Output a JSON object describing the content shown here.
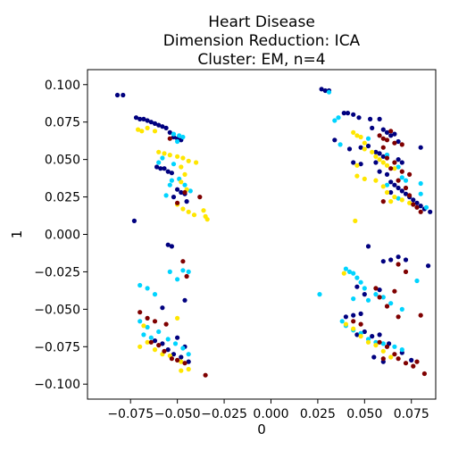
{
  "chart_data": {
    "type": "scatter",
    "title": [
      "Heart Disease",
      "Dimension Reduction: ICA",
      "Cluster: EM, n=4"
    ],
    "xlabel": "0",
    "ylabel": "1",
    "xlim": [
      -0.098,
      0.088
    ],
    "ylim": [
      -0.11,
      0.11
    ],
    "x_ticks": [
      -0.075,
      -0.05,
      -0.025,
      0.0,
      0.025,
      0.05,
      0.075
    ],
    "x_tick_labels": [
      "−0.075",
      "−0.050",
      "−0.025",
      "0.000",
      "0.025",
      "0.050",
      "0.075"
    ],
    "y_ticks": [
      0.1,
      0.075,
      0.05,
      0.025,
      0.0,
      -0.025,
      -0.05,
      -0.075,
      -0.1
    ],
    "y_tick_labels": [
      "0.100",
      "0.075",
      "0.050",
      "0.025",
      "0.000",
      "−0.025",
      "−0.050",
      "−0.075",
      "−0.100"
    ],
    "grid": false,
    "series": [
      {
        "color": "#00007f",
        "points": [
          [
            -0.082,
            0.093
          ],
          [
            -0.079,
            0.093
          ],
          [
            -0.072,
            0.078
          ],
          [
            -0.07,
            0.077
          ],
          [
            -0.068,
            0.077
          ],
          [
            -0.066,
            0.076
          ],
          [
            -0.064,
            0.075
          ],
          [
            -0.062,
            0.074
          ],
          [
            -0.06,
            0.073
          ],
          [
            -0.058,
            0.072
          ],
          [
            -0.056,
            0.071
          ],
          [
            -0.054,
            0.068
          ],
          [
            -0.052,
            0.065
          ],
          [
            -0.05,
            0.064
          ],
          [
            -0.048,
            0.063
          ],
          [
            -0.061,
            0.045
          ],
          [
            -0.059,
            0.044
          ],
          [
            -0.057,
            0.044
          ],
          [
            -0.055,
            0.042
          ],
          [
            -0.053,
            0.041
          ],
          [
            -0.05,
            0.03
          ],
          [
            -0.048,
            0.028
          ],
          [
            -0.046,
            0.027
          ],
          [
            -0.052,
            0.025
          ],
          [
            -0.045,
            0.022
          ],
          [
            -0.073,
            0.009
          ],
          [
            -0.055,
            -0.007
          ],
          [
            -0.053,
            -0.008
          ],
          [
            -0.058,
            -0.049
          ],
          [
            -0.046,
            -0.044
          ],
          [
            -0.062,
            -0.071
          ],
          [
            -0.058,
            -0.073
          ],
          [
            -0.055,
            -0.077
          ],
          [
            -0.052,
            -0.08
          ],
          [
            -0.048,
            -0.082
          ],
          [
            -0.046,
            -0.075
          ],
          [
            -0.05,
            -0.069
          ],
          [
            -0.044,
            -0.085
          ],
          [
            0.027,
            0.097
          ],
          [
            0.029,
            0.096
          ],
          [
            0.031,
            0.096
          ],
          [
            0.039,
            0.081
          ],
          [
            0.041,
            0.081
          ],
          [
            0.044,
            0.08
          ],
          [
            0.047,
            0.078
          ],
          [
            0.053,
            0.077
          ],
          [
            0.058,
            0.077
          ],
          [
            0.054,
            0.071
          ],
          [
            0.06,
            0.07
          ],
          [
            0.062,
            0.068
          ],
          [
            0.064,
            0.066
          ],
          [
            0.066,
            0.067
          ],
          [
            0.068,
            0.062
          ],
          [
            0.034,
            0.063
          ],
          [
            0.042,
            0.057
          ],
          [
            0.048,
            0.058
          ],
          [
            0.052,
            0.059
          ],
          [
            0.08,
            0.058
          ],
          [
            0.056,
            0.055
          ],
          [
            0.058,
            0.054
          ],
          [
            0.06,
            0.052
          ],
          [
            0.062,
            0.053
          ],
          [
            0.068,
            0.05
          ],
          [
            0.07,
            0.048
          ],
          [
            0.044,
            0.048
          ],
          [
            0.048,
            0.047
          ],
          [
            0.056,
            0.048
          ],
          [
            0.058,
            0.042
          ],
          [
            0.062,
            0.04
          ],
          [
            0.064,
            0.035
          ],
          [
            0.066,
            0.033
          ],
          [
            0.068,
            0.031
          ],
          [
            0.07,
            0.029
          ],
          [
            0.072,
            0.027
          ],
          [
            0.074,
            0.025
          ],
          [
            0.076,
            0.023
          ],
          [
            0.078,
            0.021
          ],
          [
            0.08,
            0.019
          ],
          [
            0.082,
            0.017
          ],
          [
            0.085,
            0.015
          ],
          [
            0.064,
            0.028
          ],
          [
            0.052,
            -0.008
          ],
          [
            0.06,
            -0.018
          ],
          [
            0.064,
            -0.017
          ],
          [
            0.068,
            -0.015
          ],
          [
            0.072,
            -0.017
          ],
          [
            0.084,
            -0.021
          ],
          [
            0.046,
            -0.035
          ],
          [
            0.05,
            -0.04
          ],
          [
            0.058,
            -0.037
          ],
          [
            0.04,
            -0.055
          ],
          [
            0.044,
            -0.054
          ],
          [
            0.048,
            -0.053
          ],
          [
            0.046,
            -0.067
          ],
          [
            0.05,
            -0.065
          ],
          [
            0.054,
            -0.068
          ],
          [
            0.058,
            -0.067
          ],
          [
            0.063,
            -0.073
          ],
          [
            0.07,
            -0.079
          ],
          [
            0.075,
            -0.084
          ],
          [
            0.055,
            -0.082
          ],
          [
            0.06,
            -0.085
          ]
        ]
      },
      {
        "color": "#00d4ff",
        "points": [
          [
            -0.052,
            0.067
          ],
          [
            -0.049,
            0.066
          ],
          [
            -0.047,
            0.065
          ],
          [
            -0.05,
            0.062
          ],
          [
            -0.058,
            0.051
          ],
          [
            -0.06,
            0.048
          ],
          [
            -0.052,
            0.047
          ],
          [
            -0.053,
            0.036
          ],
          [
            -0.049,
            0.037
          ],
          [
            -0.054,
            0.033
          ],
          [
            -0.056,
            0.026
          ],
          [
            -0.046,
            0.033
          ],
          [
            -0.043,
            0.029
          ],
          [
            -0.054,
            -0.025
          ],
          [
            -0.05,
            -0.03
          ],
          [
            -0.047,
            -0.024
          ],
          [
            -0.044,
            -0.025
          ],
          [
            -0.07,
            -0.034
          ],
          [
            -0.066,
            -0.036
          ],
          [
            -0.062,
            -0.04
          ],
          [
            -0.07,
            -0.058
          ],
          [
            -0.066,
            -0.062
          ],
          [
            -0.06,
            -0.065
          ],
          [
            -0.068,
            -0.067
          ],
          [
            -0.064,
            -0.069
          ],
          [
            -0.055,
            -0.07
          ],
          [
            -0.051,
            -0.073
          ],
          [
            -0.047,
            -0.076
          ],
          [
            -0.044,
            -0.08
          ],
          [
            0.031,
            0.095
          ],
          [
            0.034,
            0.076
          ],
          [
            0.036,
            0.078
          ],
          [
            0.037,
            0.06
          ],
          [
            0.052,
            0.064
          ],
          [
            0.062,
            0.053
          ],
          [
            0.068,
            0.045
          ],
          [
            0.07,
            0.038
          ],
          [
            0.072,
            0.036
          ],
          [
            0.068,
            0.024
          ],
          [
            0.062,
            0.033
          ],
          [
            0.08,
            0.034
          ],
          [
            0.08,
            0.027
          ],
          [
            0.083,
            0.018
          ],
          [
            0.026,
            -0.04
          ],
          [
            0.04,
            -0.023
          ],
          [
            0.042,
            -0.025
          ],
          [
            0.044,
            -0.026
          ],
          [
            0.046,
            -0.029
          ],
          [
            0.048,
            -0.032
          ],
          [
            0.05,
            -0.036
          ],
          [
            0.044,
            -0.043
          ],
          [
            0.052,
            -0.044
          ],
          [
            0.056,
            -0.04
          ],
          [
            0.06,
            -0.042
          ],
          [
            0.064,
            -0.046
          ],
          [
            0.07,
            -0.05
          ],
          [
            0.078,
            -0.031
          ],
          [
            0.038,
            -0.058
          ],
          [
            0.04,
            -0.061
          ],
          [
            0.044,
            -0.064
          ],
          [
            0.048,
            -0.066
          ],
          [
            0.052,
            -0.07
          ],
          [
            0.056,
            -0.072
          ],
          [
            0.06,
            -0.073
          ],
          [
            0.066,
            -0.075
          ],
          [
            0.07,
            -0.077
          ]
        ]
      },
      {
        "color": "#ffe600",
        "points": [
          [
            -0.071,
            0.07
          ],
          [
            -0.069,
            0.069
          ],
          [
            -0.066,
            0.071
          ],
          [
            -0.062,
            0.069
          ],
          [
            -0.06,
            0.055
          ],
          [
            -0.057,
            0.054
          ],
          [
            -0.054,
            0.053
          ],
          [
            -0.05,
            0.052
          ],
          [
            -0.047,
            0.051
          ],
          [
            -0.044,
            0.049
          ],
          [
            -0.04,
            0.048
          ],
          [
            -0.048,
            0.045
          ],
          [
            -0.046,
            0.04
          ],
          [
            -0.048,
            0.035
          ],
          [
            -0.045,
            0.03
          ],
          [
            -0.05,
            0.02
          ],
          [
            -0.047,
            0.017
          ],
          [
            -0.044,
            0.015
          ],
          [
            -0.041,
            0.013
          ],
          [
            -0.036,
            0.016
          ],
          [
            -0.035,
            0.012
          ],
          [
            -0.034,
            0.01
          ],
          [
            -0.05,
            -0.056
          ],
          [
            -0.068,
            -0.061
          ],
          [
            -0.066,
            -0.072
          ],
          [
            -0.07,
            -0.075
          ],
          [
            -0.062,
            -0.077
          ],
          [
            -0.058,
            -0.08
          ],
          [
            -0.054,
            -0.081
          ],
          [
            -0.048,
            -0.085
          ],
          [
            -0.044,
            -0.09
          ],
          [
            -0.048,
            -0.091
          ],
          [
            0.044,
            0.068
          ],
          [
            0.046,
            0.066
          ],
          [
            0.048,
            0.065
          ],
          [
            0.05,
            0.061
          ],
          [
            0.05,
            0.057
          ],
          [
            0.054,
            0.055
          ],
          [
            0.056,
            0.052
          ],
          [
            0.058,
            0.05
          ],
          [
            0.06,
            0.048
          ],
          [
            0.062,
            0.046
          ],
          [
            0.066,
            0.044
          ],
          [
            0.046,
            0.046
          ],
          [
            0.046,
            0.039
          ],
          [
            0.05,
            0.037
          ],
          [
            0.056,
            0.036
          ],
          [
            0.06,
            0.032
          ],
          [
            0.062,
            0.028
          ],
          [
            0.066,
            0.025
          ],
          [
            0.07,
            0.023
          ],
          [
            0.074,
            0.021
          ],
          [
            0.064,
            0.022
          ],
          [
            0.045,
            0.009
          ],
          [
            0.039,
            -0.026
          ],
          [
            0.04,
            -0.06
          ],
          [
            0.044,
            -0.063
          ],
          [
            0.048,
            -0.068
          ],
          [
            0.052,
            -0.072
          ],
          [
            0.056,
            -0.074
          ],
          [
            0.06,
            -0.078
          ],
          [
            0.064,
            -0.082
          ]
        ]
      },
      {
        "color": "#7f0000",
        "points": [
          [
            -0.054,
            0.064
          ],
          [
            -0.046,
            0.028
          ],
          [
            -0.05,
            0.021
          ],
          [
            -0.038,
            0.025
          ],
          [
            -0.047,
            -0.018
          ],
          [
            -0.045,
            -0.028
          ],
          [
            -0.07,
            -0.052
          ],
          [
            -0.066,
            -0.056
          ],
          [
            -0.062,
            -0.058
          ],
          [
            -0.056,
            -0.06
          ],
          [
            -0.064,
            -0.072
          ],
          [
            -0.06,
            -0.074
          ],
          [
            -0.057,
            -0.078
          ],
          [
            -0.053,
            -0.083
          ],
          [
            -0.05,
            -0.084
          ],
          [
            -0.046,
            -0.086
          ],
          [
            -0.035,
            -0.094
          ],
          [
            0.058,
            0.066
          ],
          [
            0.06,
            0.064
          ],
          [
            0.062,
            0.063
          ],
          [
            0.064,
            0.069
          ],
          [
            0.066,
            0.061
          ],
          [
            0.07,
            0.06
          ],
          [
            0.06,
            0.058
          ],
          [
            0.062,
            0.051
          ],
          [
            0.064,
            0.044
          ],
          [
            0.066,
            0.048
          ],
          [
            0.07,
            0.042
          ],
          [
            0.074,
            0.04
          ],
          [
            0.068,
            0.036
          ],
          [
            0.072,
            0.031
          ],
          [
            0.074,
            0.026
          ],
          [
            0.076,
            0.02
          ],
          [
            0.078,
            0.018
          ],
          [
            0.08,
            0.015
          ],
          [
            0.06,
            0.022
          ],
          [
            0.068,
            -0.02
          ],
          [
            0.072,
            -0.025
          ],
          [
            0.056,
            -0.036
          ],
          [
            0.058,
            -0.042
          ],
          [
            0.066,
            -0.038
          ],
          [
            0.062,
            -0.048
          ],
          [
            0.068,
            -0.055
          ],
          [
            0.08,
            -0.054
          ],
          [
            0.044,
            -0.058
          ],
          [
            0.048,
            -0.06
          ],
          [
            0.058,
            -0.072
          ],
          [
            0.062,
            -0.075
          ],
          [
            0.066,
            -0.08
          ],
          [
            0.068,
            -0.083
          ],
          [
            0.072,
            -0.086
          ],
          [
            0.076,
            -0.088
          ],
          [
            0.078,
            -0.085
          ],
          [
            0.082,
            -0.093
          ],
          [
            0.06,
            -0.083
          ]
        ]
      }
    ]
  }
}
